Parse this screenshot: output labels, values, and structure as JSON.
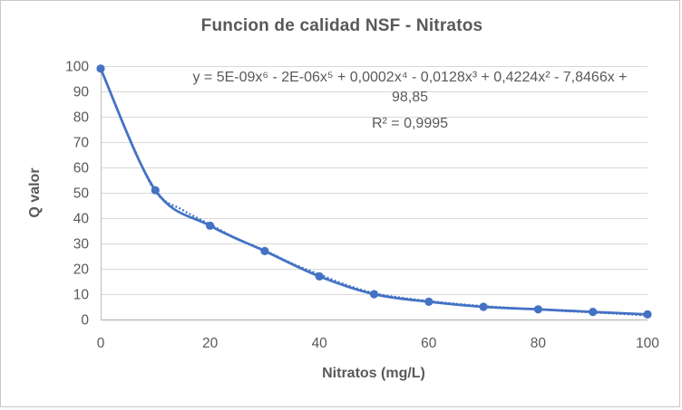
{
  "chart_title": "Funcion de calidad NSF - Nitratos",
  "chart_data": {
    "type": "line",
    "title": "Funcion de calidad NSF - Nitratos",
    "xlabel": "Nitratos (mg/L)",
    "ylabel": "Q valor",
    "xlim": [
      0,
      100
    ],
    "ylim": [
      0,
      100
    ],
    "x_ticks": [
      0,
      20,
      40,
      60,
      80,
      100
    ],
    "y_ticks": [
      0,
      10,
      20,
      30,
      40,
      50,
      60,
      70,
      80,
      90,
      100
    ],
    "grid": "horizontal-only",
    "legend": "none",
    "categories": [
      0,
      10,
      20,
      30,
      40,
      50,
      60,
      70,
      80,
      90,
      100
    ],
    "series": [
      {
        "name": "Q valor",
        "values": [
          99,
          51,
          37,
          27,
          17,
          10,
          7,
          5,
          4,
          3,
          2
        ],
        "marker": "circle",
        "smooth": true
      }
    ],
    "trendline": {
      "type": "polynomial",
      "order": 6,
      "style": "dotted",
      "x": [
        0,
        5,
        10,
        15,
        20,
        25,
        30,
        35,
        40,
        45,
        50,
        55,
        60,
        65,
        70,
        75,
        80,
        85,
        90,
        95,
        100
      ],
      "values": [
        98.85,
        73,
        50.5,
        43.2,
        37.5,
        31.8,
        27.3,
        22.1,
        17.8,
        13.6,
        10.4,
        8.6,
        7.3,
        6.2,
        5.3,
        4.6,
        4.0,
        3.3,
        2.8,
        2.2,
        1.6
      ]
    },
    "annotation_lines": [
      "y = 5E-09x⁶ - 2E-06x⁵ + 0,0002x⁴ - 0,0128x³ + 0,4224x² - 7,8466x +",
      "98,85",
      "R² = 0,9995"
    ],
    "colors": {
      "series": "#4472C4",
      "trendline": "#4472C4",
      "gridline": "#D9D9D9",
      "axis_line": "#BFBFBF",
      "text": "#595959"
    }
  }
}
